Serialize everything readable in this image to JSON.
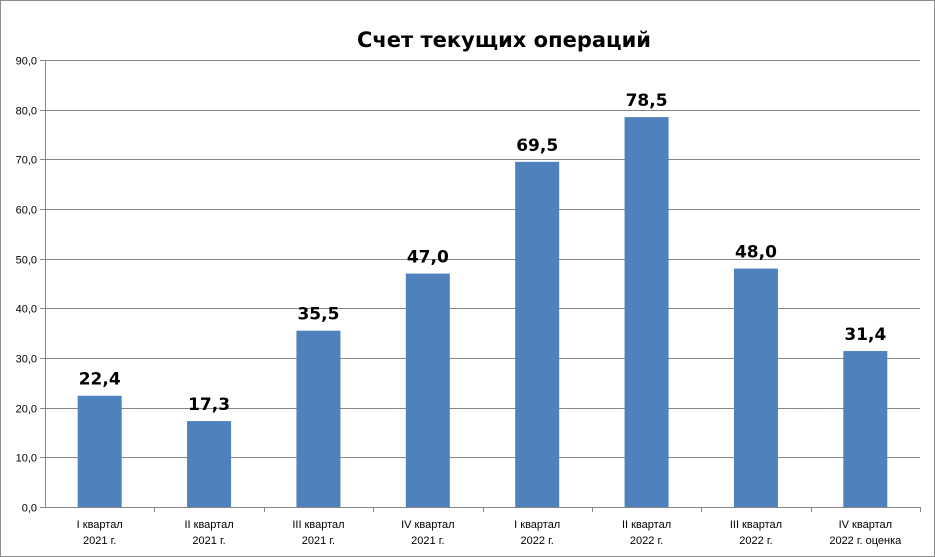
{
  "chart_data": {
    "type": "bar",
    "title": "Счет текущих операций",
    "xlabel": "",
    "ylabel": "",
    "ylim": [
      0,
      90
    ],
    "yticks": [
      "0,0",
      "10,0",
      "20,0",
      "30,0",
      "40,0",
      "50,0",
      "60,0",
      "70,0",
      "80,0",
      "90,0"
    ],
    "grid": true,
    "legend": "none",
    "bar_color": "#4f81bd",
    "categories": [
      [
        "I квартал",
        "2021 г."
      ],
      [
        "II квартал",
        "2021 г."
      ],
      [
        "III квартал",
        "2021 г."
      ],
      [
        "IV квартал",
        "2021 г."
      ],
      [
        "I квартал",
        "2022 г."
      ],
      [
        "II квартал",
        "2022 г."
      ],
      [
        "III квартал",
        "2022 г."
      ],
      [
        "IV квартал",
        "2022 г. оценка"
      ]
    ],
    "values": [
      22.4,
      17.3,
      35.5,
      47.0,
      69.5,
      78.5,
      48.0,
      31.4
    ],
    "value_labels": [
      "22,4",
      "17,3",
      "35,5",
      "47,0",
      "69,5",
      "78,5",
      "48,0",
      "31,4"
    ]
  }
}
